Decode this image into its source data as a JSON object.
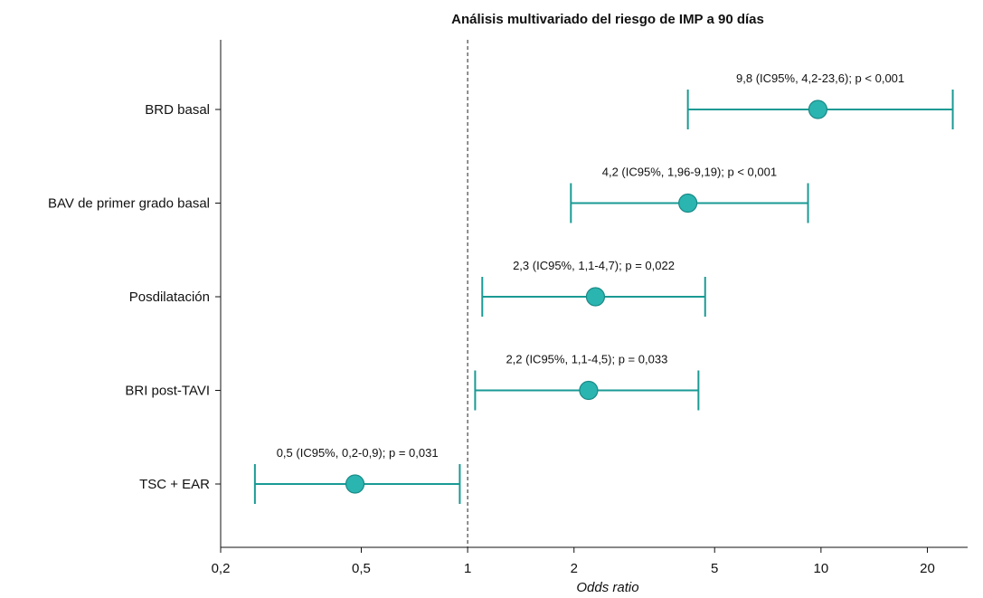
{
  "chart_data": {
    "type": "forest",
    "title": "Análisis multivariado del riesgo de IMP a 90 días",
    "xlabel": "Odds ratio",
    "x_scale": "log",
    "xlim": [
      0.2,
      26
    ],
    "x_ticks": [
      {
        "value": 0.2,
        "label": "0,2"
      },
      {
        "value": 0.5,
        "label": "0,5"
      },
      {
        "value": 1,
        "label": "1"
      },
      {
        "value": 2,
        "label": "2"
      },
      {
        "value": 5,
        "label": "5"
      },
      {
        "value": 10,
        "label": "10"
      },
      {
        "value": 20,
        "label": "20"
      }
    ],
    "reference_line": 1,
    "colors": {
      "marker_fill": "#2bb5b0",
      "marker_stroke": "#1a8a87",
      "ci_line": "#1a9a94"
    },
    "rows": [
      {
        "label": "BRD basal",
        "or": 9.8,
        "lo": 4.2,
        "hi": 23.6,
        "annotation": "9,8 (IC95%, 4,2-23,6); p < 0,001"
      },
      {
        "label": "BAV de primer grado basal",
        "or": 4.2,
        "lo": 1.96,
        "hi": 9.19,
        "annotation": "4,2 (IC95%, 1,96-9,19); p < 0,001"
      },
      {
        "label": "Posdilatación",
        "or": 2.3,
        "lo": 1.1,
        "hi": 4.7,
        "annotation": "2,3 (IC95%, 1,1-4,7); p = 0,022"
      },
      {
        "label": "BRI post-TAVI",
        "or": 2.2,
        "lo": 1.05,
        "hi": 4.5,
        "annotation": "2,2 (IC95%, 1,1-4,5); p = 0,033"
      },
      {
        "label": "TSC + EAR",
        "or": 0.48,
        "lo": 0.25,
        "hi": 0.95,
        "annotation": "0,5 (IC95%, 0,2-0,9); p = 0,031"
      }
    ]
  }
}
